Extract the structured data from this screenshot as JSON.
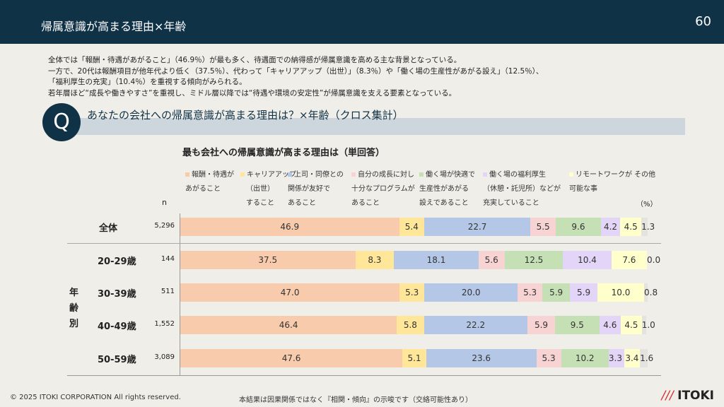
{
  "header": {
    "title": "帰属意識が高まる理由×年齢",
    "page": "60"
  },
  "summary": [
    "全体では「報酬・待遇があがること」（46.9％）が最も多く、待遇面での納得感が帰属意識を高める主な背景となっている。",
    "一方で、20代は報酬項目が他年代より低く（37.5％）、代わって「キャリアアップ（出世）」（8.3％）や「働く場の生産性があがる設え」（12.5％）、",
    "「福利厚生の充実」（10.4％）を重視する傾向がみられる。",
    "若年層ほど“成長や働きやすさ”を重視し、ミドル層以降では“待遇や環境の安定性”が帰属意識を支える要素となっている。"
  ],
  "question": {
    "badge": "Q",
    "text": "あなたの会社への帰属意識が高まる理由は？×年齢（クロス集計）"
  },
  "chart_data": {
    "type": "bar",
    "orientation": "horizontal",
    "stacked": true,
    "title": "最も会社への帰属意識が高まる理由は（単回答）",
    "n_label": "n",
    "unit_label": "（%）",
    "group_label": "年齢別",
    "series": [
      {
        "name": "報酬・待遇が あがること",
        "lines": [
          "報酬・待遇が",
          "あがること"
        ],
        "color": "#f8cbad"
      },
      {
        "name": "キャリアアップ（出世）すること",
        "lines": [
          "キャリアアップ",
          "（出世）",
          "すること"
        ],
        "color": "#ffe699"
      },
      {
        "name": "上司・同僚との関係が友好であること",
        "lines": [
          "上司・同僚との",
          "関係が友好で",
          "あること"
        ],
        "color": "#b4c7e7"
      },
      {
        "name": "自分の成長に対し十分なプログラムがあること",
        "lines": [
          "自分の成長に対し",
          "十分なプログラムが",
          "あること"
        ],
        "color": "#f8d3d3"
      },
      {
        "name": "働く場が快適で生産性があがる設えであること",
        "lines": [
          "働く場が快適で",
          "生産性があがる",
          "設えであること"
        ],
        "color": "#c5e0b4"
      },
      {
        "name": "働く場の福利厚生（休憩・託児所）などが充実していること",
        "lines": [
          "働く場の福利厚生",
          "（休憩・託児所）などが",
          "充実していること"
        ],
        "color": "#e2d5f8"
      },
      {
        "name": "リモートワークが可能な事",
        "lines": [
          "リモートワークが",
          "可能な事"
        ],
        "color": "#ffffcc"
      },
      {
        "name": "その他",
        "lines": [
          "その他"
        ],
        "color": "#e4e3e0"
      }
    ],
    "rows": [
      {
        "label": "全体",
        "n": "5,296",
        "values": [
          46.9,
          5.4,
          22.7,
          5.5,
          9.6,
          4.2,
          4.5,
          1.3
        ]
      },
      {
        "label": "20-29歳",
        "n": "144",
        "values": [
          37.5,
          8.3,
          18.1,
          5.6,
          12.5,
          10.4,
          7.6,
          0.0
        ]
      },
      {
        "label": "30-39歳",
        "n": "511",
        "values": [
          47.0,
          5.3,
          20.0,
          5.3,
          5.9,
          5.9,
          10.0,
          0.8
        ]
      },
      {
        "label": "40-49歳",
        "n": "1,552",
        "values": [
          46.4,
          5.8,
          22.2,
          5.9,
          9.5,
          4.6,
          4.5,
          1.0
        ]
      },
      {
        "label": "50-59歳",
        "n": "3,089",
        "values": [
          47.6,
          5.1,
          23.6,
          5.3,
          10.2,
          3.3,
          3.4,
          1.6
        ]
      }
    ]
  },
  "footer": {
    "copyright": "© 2025 ITOKI CORPORATION  All rights reserved.",
    "note": "本結果は因果関係ではなく『相関・傾向』の示唆です（交絡可能性あり）",
    "logo": "ITOKI",
    "logo_mark": "///"
  }
}
